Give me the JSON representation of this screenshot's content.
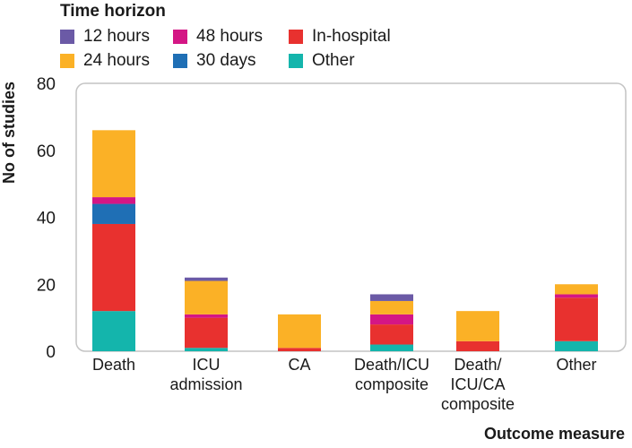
{
  "legend": {
    "title": "Time horizon",
    "items": [
      {
        "label": "12 hours",
        "color": "#6b5aa6"
      },
      {
        "label": "48 hours",
        "color": "#d41685"
      },
      {
        "label": "In-hospital",
        "color": "#e8312f"
      },
      {
        "label": "24 hours",
        "color": "#fbb126"
      },
      {
        "label": "30 days",
        "color": "#1f6fb5"
      },
      {
        "label": "Other",
        "color": "#14b5ac"
      }
    ]
  },
  "chart_data": {
    "type": "bar",
    "stacked": true,
    "categories": [
      "Death",
      "ICU\nadmission",
      "CA",
      "Death/ICU\ncomposite",
      "Death/\nICU/CA\ncomposite",
      "Other"
    ],
    "xlabel": "Outcome measure",
    "ylabel": "No of studies",
    "ylim": [
      0,
      80
    ],
    "yticks": [
      0,
      20,
      40,
      60,
      80
    ],
    "grid": false,
    "legend_position": "top",
    "series": [
      {
        "name": "Other",
        "color": "#14b5ac",
        "values": [
          12,
          1,
          0,
          2,
          0,
          3
        ]
      },
      {
        "name": "In-hospital",
        "color": "#e8312f",
        "values": [
          26,
          9,
          1,
          6,
          3,
          13
        ]
      },
      {
        "name": "30 days",
        "color": "#1f6fb5",
        "values": [
          6,
          0,
          0,
          0,
          0,
          0
        ]
      },
      {
        "name": "48 hours",
        "color": "#d41685",
        "values": [
          2,
          1,
          0,
          3,
          0,
          1
        ]
      },
      {
        "name": "24 hours",
        "color": "#fbb126",
        "values": [
          20,
          10,
          10,
          4,
          9,
          3
        ]
      },
      {
        "name": "12 hours",
        "color": "#6b5aa6",
        "values": [
          0,
          1,
          0,
          2,
          0,
          0
        ]
      }
    ]
  }
}
